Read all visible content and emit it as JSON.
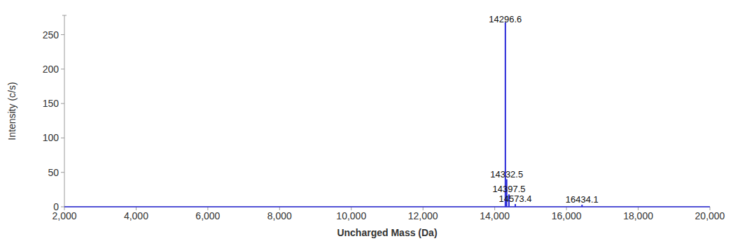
{
  "chart_data": {
    "type": "stick",
    "x_label": "Uncharged Mass (Da)",
    "y_label": "Intensity (c/s)",
    "x": [
      14296.6,
      14332.5,
      14397.5,
      14573.4,
      16434.1
    ],
    "values": [
      268,
      40,
      18,
      4,
      3
    ],
    "color": "#2a2ad8",
    "xlim": [
      2000,
      20000
    ],
    "xticks": [
      {
        "value": 2000,
        "label": "2,000"
      },
      {
        "value": 4000,
        "label": "4,000"
      },
      {
        "value": 6000,
        "label": "6,000"
      },
      {
        "value": 8000,
        "label": "8,000"
      },
      {
        "value": 10000,
        "label": "10,000"
      },
      {
        "value": 12000,
        "label": "12,000"
      },
      {
        "value": 14000,
        "label": "14,000"
      },
      {
        "value": 16000,
        "label": "16,000"
      },
      {
        "value": 18000,
        "label": "18,000"
      },
      {
        "value": 20000,
        "label": "20,000"
      }
    ],
    "ylim": [
      0,
      278
    ],
    "yticks": [
      0,
      50,
      100,
      150,
      200,
      250
    ],
    "grid": false
  }
}
